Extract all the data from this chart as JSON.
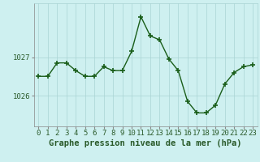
{
  "x": [
    0,
    1,
    2,
    3,
    4,
    5,
    6,
    7,
    8,
    9,
    10,
    11,
    12,
    13,
    14,
    15,
    16,
    17,
    18,
    19,
    20,
    21,
    22,
    23
  ],
  "y": [
    1026.5,
    1026.5,
    1026.85,
    1026.85,
    1026.65,
    1026.5,
    1026.5,
    1026.75,
    1026.65,
    1026.65,
    1027.15,
    1028.05,
    1027.55,
    1027.45,
    1026.95,
    1026.65,
    1025.85,
    1025.55,
    1025.55,
    1025.75,
    1026.3,
    1026.6,
    1026.75,
    1026.8
  ],
  "line_color": "#1a5e1a",
  "marker_color": "#1a5e1a",
  "bg_color": "#cef0f0",
  "grid_color": "#aad4d4",
  "axis_color": "#2a5a2a",
  "title": "Graphe pression niveau de la mer (hPa)",
  "yticks": [
    1026,
    1027
  ],
  "ylim": [
    1025.2,
    1028.4
  ],
  "xlim": [
    -0.5,
    23.5
  ],
  "xtick_labels": [
    "0",
    "1",
    "2",
    "3",
    "4",
    "5",
    "6",
    "7",
    "8",
    "9",
    "10",
    "11",
    "12",
    "13",
    "14",
    "15",
    "16",
    "17",
    "18",
    "19",
    "20",
    "21",
    "22",
    "23"
  ],
  "title_fontsize": 7.5,
  "tick_fontsize": 6.5,
  "linewidth": 1.0,
  "markersize": 2.5,
  "fig_width": 3.2,
  "fig_height": 2.0,
  "dpi": 100
}
